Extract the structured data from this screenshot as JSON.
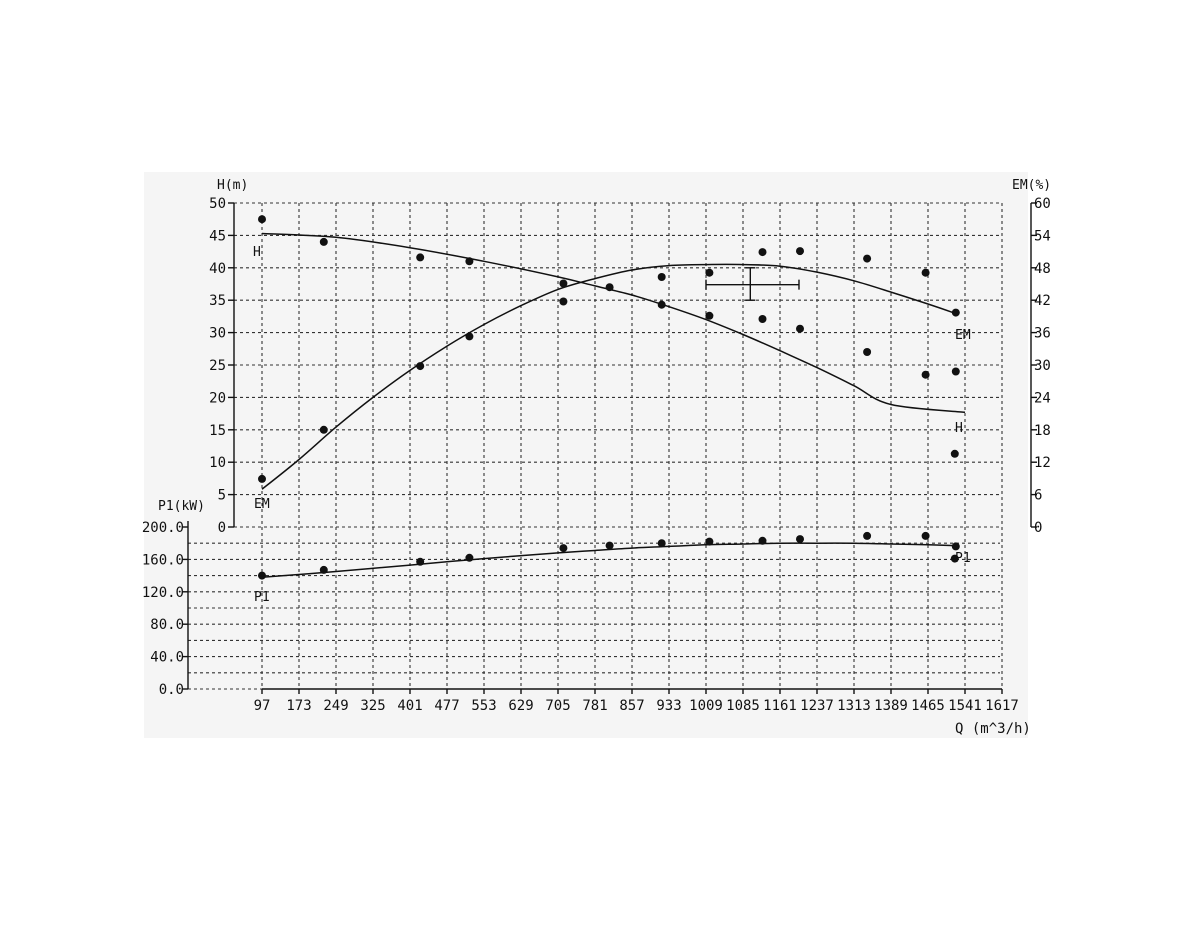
{
  "chart_data": {
    "type": "scatter",
    "axes": {
      "x": {
        "label": "Q (m^3/h)",
        "ticks": [
          "97",
          "173",
          "249",
          "325",
          "401",
          "477",
          "553",
          "629",
          "705",
          "781",
          "857",
          "933",
          "1009",
          "1085",
          "1161",
          "1237",
          "1313",
          "1389",
          "1465",
          "1541",
          "1617"
        ],
        "range": [
          97,
          1617
        ]
      },
      "y_head": {
        "label": "H(m)",
        "ticks": [
          "0",
          "5",
          "10",
          "15",
          "20",
          "25",
          "30",
          "35",
          "40",
          "45",
          "50"
        ],
        "range": [
          0,
          50
        ]
      },
      "y_eff": {
        "label": "EM(%)",
        "ticks": [
          "0",
          "6",
          "12",
          "18",
          "24",
          "30",
          "36",
          "42",
          "48",
          "54",
          "60"
        ],
        "range": [
          0,
          60
        ]
      },
      "y_power": {
        "label": "P1(kW)",
        "ticks": [
          "0.0",
          "40.0",
          "80.0",
          "120.0",
          "160.0",
          "200.0"
        ],
        "range": [
          0,
          200
        ]
      }
    },
    "series": [
      {
        "name": "H",
        "axis": "y_head",
        "label_start": "H",
        "label_end": "H",
        "curve": [
          [
            97,
            45.3
          ],
          [
            249,
            44.7
          ],
          [
            401,
            43.1
          ],
          [
            553,
            41.0
          ],
          [
            705,
            38.6
          ],
          [
            781,
            37.2
          ],
          [
            857,
            35.8
          ],
          [
            933,
            34.0
          ],
          [
            1009,
            32.0
          ],
          [
            1085,
            29.7
          ],
          [
            1161,
            27.2
          ],
          [
            1237,
            24.6
          ],
          [
            1313,
            21.8
          ],
          [
            1389,
            18.9
          ],
          [
            1541,
            17.7
          ]
        ],
        "points": [
          [
            97,
            47.5
          ],
          [
            224,
            44.0
          ],
          [
            422,
            41.6
          ],
          [
            523,
            41.0
          ],
          [
            716,
            34.8
          ],
          [
            811,
            37.0
          ],
          [
            918,
            34.3
          ],
          [
            1016,
            32.6
          ],
          [
            1125,
            32.1
          ],
          [
            1202,
            30.6
          ],
          [
            1340,
            27.0
          ],
          [
            1460,
            23.5
          ],
          [
            1522,
            24.0
          ],
          [
            1520,
            11.3
          ]
        ]
      },
      {
        "name": "EM",
        "axis": "y_eff",
        "label_start": "EM",
        "label_end": "EM",
        "curve": [
          [
            97,
            7.0
          ],
          [
            173,
            12.5
          ],
          [
            249,
            18.5
          ],
          [
            325,
            24.0
          ],
          [
            401,
            29.0
          ],
          [
            477,
            33.5
          ],
          [
            553,
            37.5
          ],
          [
            629,
            41.0
          ],
          [
            705,
            44.0
          ],
          [
            781,
            46.0
          ],
          [
            857,
            47.6
          ],
          [
            933,
            48.4
          ],
          [
            1009,
            48.6
          ],
          [
            1085,
            48.6
          ],
          [
            1161,
            48.3
          ],
          [
            1237,
            47.2
          ],
          [
            1313,
            45.6
          ],
          [
            1389,
            43.5
          ],
          [
            1465,
            41.3
          ],
          [
            1520,
            39.6
          ]
        ],
        "points": [
          [
            97,
            8.9
          ],
          [
            224,
            18.0
          ],
          [
            422,
            29.8
          ],
          [
            523,
            35.3
          ],
          [
            716,
            45.1
          ],
          [
            918,
            46.3
          ],
          [
            1016,
            47.1
          ],
          [
            1125,
            50.9
          ],
          [
            1202,
            51.1
          ],
          [
            1340,
            49.7
          ],
          [
            1460,
            47.1
          ],
          [
            1522,
            39.7
          ]
        ]
      },
      {
        "name": "P1",
        "axis": "y_power",
        "label_start": "P1",
        "label_end": "P1",
        "curve": [
          [
            97,
            138
          ],
          [
            249,
            145
          ],
          [
            401,
            153
          ],
          [
            553,
            161
          ],
          [
            705,
            168
          ],
          [
            781,
            171
          ],
          [
            857,
            174
          ],
          [
            933,
            176
          ],
          [
            1009,
            178
          ],
          [
            1085,
            179
          ],
          [
            1161,
            180
          ],
          [
            1237,
            180
          ],
          [
            1313,
            180
          ],
          [
            1389,
            179
          ],
          [
            1465,
            178
          ],
          [
            1520,
            177
          ]
        ],
        "points": [
          [
            97,
            140
          ],
          [
            224,
            147
          ],
          [
            422,
            157
          ],
          [
            523,
            162
          ],
          [
            716,
            174
          ],
          [
            811,
            177
          ],
          [
            918,
            180
          ],
          [
            1016,
            182
          ],
          [
            1125,
            183
          ],
          [
            1202,
            185
          ],
          [
            1340,
            189
          ],
          [
            1460,
            189
          ],
          [
            1522,
            176
          ],
          [
            1520,
            161
          ]
        ]
      }
    ],
    "best_efficiency_marker": {
      "q": 1100,
      "h": 37.4,
      "q_range": [
        1009,
        1200
      ],
      "h_range": [
        35,
        40
      ]
    }
  }
}
